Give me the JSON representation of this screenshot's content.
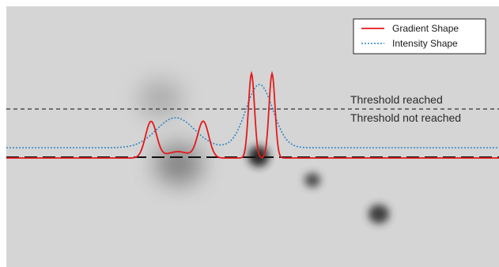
{
  "chart_data": {
    "type": "line",
    "title": "",
    "xlabel": "",
    "ylabel": "",
    "grid": false,
    "legend_position": "top-right",
    "background": "grayscale star-field image",
    "series": [
      {
        "name": "Gradient Shape",
        "color": "#e3191b",
        "style": "solid"
      },
      {
        "name": "Intensity Shape",
        "color": "#2e86c8",
        "style": "dotted"
      }
    ],
    "annotations": [
      {
        "text": "Threshold reached",
        "position": "above upper dashed line"
      },
      {
        "text": "Threshold not reached",
        "position": "below upper dashed line"
      }
    ],
    "reference_lines": [
      {
        "role": "threshold",
        "style": "dashed",
        "color": "#333333"
      },
      {
        "role": "baseline",
        "style": "long-dashed",
        "color": "#111111"
      }
    ]
  }
}
